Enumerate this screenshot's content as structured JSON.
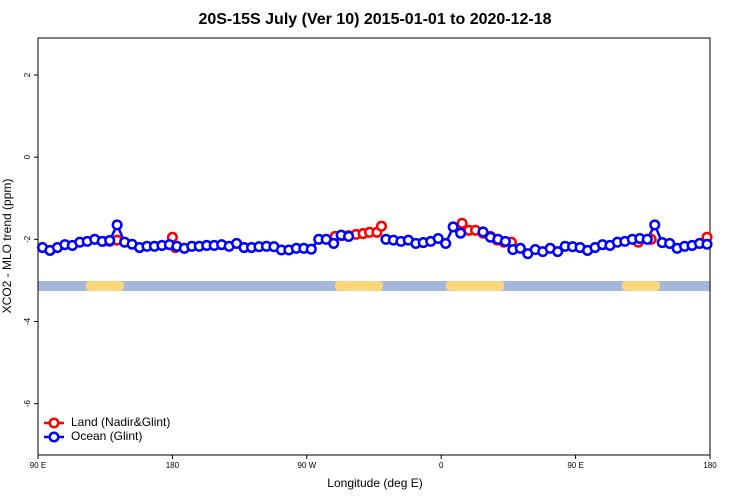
{
  "chart_data": {
    "type": "line",
    "title": "20S-15S July (Ver 10)   2015-01-01 to 2020-12-18",
    "xlabel": "Longitude (deg E)",
    "ylabel": "XCO2 - MLO trend (ppm)",
    "xlim": [
      90,
      540
    ],
    "xticks": [
      {
        "value": 90,
        "label": "90 E"
      },
      180,
      {
        "value": 270,
        "label": "90 W"
      },
      {
        "value": 360,
        "label": "0"
      },
      {
        "value": 450,
        "label": "90 E"
      },
      {
        "value": 540,
        "label": "180"
      }
    ],
    "ylim": [
      -7.25,
      2.9
    ],
    "yticks": [
      -6,
      -4,
      -2,
      0,
      2
    ],
    "legend": "bottom-left",
    "series": [
      {
        "name": "Land (Nadir&Glint)",
        "color": "#ff0000",
        "x": [
          133.5,
          138,
          143,
          null,
          180,
          182,
          null,
          289,
          293.6,
          298,
          303,
          307.7,
          312,
          317,
          320,
          null,
          374,
          378.6,
          383,
          388,
          393,
          397.5,
          402,
          407,
          null,
          492,
          500.6,
          null,
          538
        ],
        "values": [
          -2.05,
          -2.05,
          -2.02,
          null,
          -1.95,
          -2.2,
          null,
          -1.93,
          -1.91,
          -1.91,
          -1.88,
          -1.86,
          -1.83,
          -1.83,
          -1.68,
          null,
          -1.61,
          -1.78,
          -1.78,
          -1.85,
          -1.93,
          -2.02,
          -2.07,
          -2.07,
          null,
          -2.07,
          -2.0,
          null,
          -1.95
        ]
      },
      {
        "name": "Ocean (Glint)",
        "color": "#0000ff",
        "x": [
          93,
          98,
          103,
          108,
          113,
          118,
          123,
          128,
          133,
          138,
          143,
          148,
          153,
          158,
          163,
          168,
          173,
          178,
          183,
          188,
          193,
          198,
          203,
          208,
          213,
          218,
          223,
          228,
          233,
          238,
          243,
          248,
          253,
          258,
          263,
          268,
          273,
          278,
          283,
          288,
          293,
          298,
          303,
          308,
          313,
          318,
          323,
          328,
          333,
          338,
          343,
          348,
          353,
          358,
          363,
          368,
          373,
          378,
          383,
          388,
          393,
          398,
          403,
          408,
          413,
          418,
          423,
          428,
          433,
          438,
          443,
          448,
          453,
          458,
          463,
          468,
          473,
          478,
          483,
          488,
          493,
          498,
          503,
          508,
          513,
          518,
          523,
          528,
          533,
          538
        ],
        "values": [
          -2.2,
          -2.27,
          -2.2,
          -2.13,
          -2.15,
          -2.07,
          -2.05,
          -2.0,
          -2.05,
          -2.03,
          -1.65,
          -2.07,
          -2.12,
          -2.2,
          -2.17,
          -2.17,
          -2.15,
          -2.13,
          -2.17,
          -2.22,
          -2.17,
          -2.17,
          -2.15,
          -2.15,
          -2.13,
          -2.17,
          -2.1,
          -2.2,
          -2.2,
          -2.18,
          -2.17,
          -2.18,
          -2.26,
          -2.26,
          -2.22,
          -2.22,
          -2.24,
          -2.0,
          -2.0,
          -2.1,
          -1.9,
          -1.93,
          null,
          null,
          null,
          null,
          -2.0,
          -2.02,
          -2.05,
          -2.02,
          -2.1,
          -2.08,
          -2.05,
          -1.98,
          -2.1,
          -1.7,
          -1.85,
          null,
          null,
          -1.82,
          -1.95,
          -2.0,
          -2.05,
          -2.25,
          -2.22,
          -2.35,
          -2.25,
          -2.3,
          -2.22,
          -2.3,
          -2.17,
          -2.18,
          -2.2,
          -2.27,
          -2.2,
          -2.13,
          -2.15,
          -2.07,
          -2.05,
          -2.0,
          -1.98,
          -2.0,
          -1.65,
          -2.08,
          -2.1,
          -2.22,
          -2.17,
          -2.15,
          -2.1,
          -2.12
        ]
      }
    ]
  }
}
